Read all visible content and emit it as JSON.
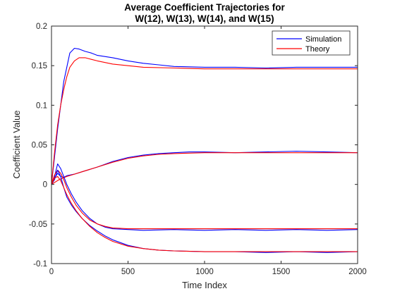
{
  "chart_data": {
    "type": "line",
    "title_lines": [
      "Average Coefficient Trajectories for",
      "W(12), W(13), W(14), and W(15)"
    ],
    "xlabel": "Time Index",
    "ylabel": "Coefficient Value",
    "xlim": [
      0,
      2000
    ],
    "ylim": [
      -0.1,
      0.2
    ],
    "xticks": [
      0,
      500,
      1000,
      1500,
      2000
    ],
    "xtick_labels": [
      "0",
      "500",
      "1000",
      "1500",
      "2000"
    ],
    "yticks": [
      -0.1,
      -0.05,
      0,
      0.05,
      0.1,
      0.15,
      0.2
    ],
    "ytick_labels": [
      "-0.1",
      "-0.05",
      "0",
      "0.05",
      "0.1",
      "0.15",
      "0.2"
    ],
    "grid": false,
    "legend_position": "top-right",
    "legend": [
      {
        "label": "Simulation",
        "color": "#0000ff"
      },
      {
        "label": "Theory",
        "color": "#ff0000"
      }
    ],
    "series": [
      {
        "legend": "Simulation",
        "color": "#0000ff",
        "x": [
          0,
          40,
          80,
          120,
          150,
          180,
          220,
          260,
          300,
          400,
          500,
          600,
          700,
          800,
          1000,
          1200,
          1400,
          1600,
          1800,
          2000
        ],
        "y": [
          0,
          0.07,
          0.13,
          0.166,
          0.172,
          0.171,
          0.168,
          0.166,
          0.163,
          0.16,
          0.156,
          0.153,
          0.151,
          0.149,
          0.148,
          0.148,
          0.147,
          0.148,
          0.148,
          0.148
        ]
      },
      {
        "legend": "Theory",
        "color": "#ff0000",
        "x": [
          0,
          20,
          40,
          60,
          80,
          100,
          120,
          150,
          180,
          220,
          260,
          300,
          400,
          500,
          600,
          800,
          1000,
          1200,
          1600,
          2000
        ],
        "y": [
          0,
          0.04,
          0.075,
          0.1,
          0.12,
          0.136,
          0.148,
          0.156,
          0.16,
          0.16,
          0.158,
          0.156,
          0.152,
          0.15,
          0.148,
          0.147,
          0.146,
          0.146,
          0.146,
          0.146
        ]
      },
      {
        "legend": "Simulation",
        "color": "#0000ff",
        "x": [
          0,
          20,
          40,
          60,
          80,
          100,
          150,
          200,
          300,
          400,
          500,
          600,
          700,
          800,
          900,
          1000,
          1200,
          1400,
          1600,
          1800,
          2000
        ],
        "y": [
          0,
          0.008,
          0.014,
          0.01,
          0.009,
          0.011,
          0.013,
          0.016,
          0.022,
          0.029,
          0.034,
          0.037,
          0.039,
          0.04,
          0.041,
          0.041,
          0.04,
          0.041,
          0.042,
          0.041,
          0.04
        ]
      },
      {
        "legend": "Theory",
        "color": "#ff0000",
        "x": [
          0,
          50,
          100,
          150,
          200,
          300,
          400,
          500,
          600,
          700,
          800,
          1000,
          1200,
          1400,
          1600,
          1800,
          2000
        ],
        "y": [
          0,
          0.006,
          0.01,
          0.013,
          0.016,
          0.022,
          0.028,
          0.033,
          0.036,
          0.038,
          0.039,
          0.04,
          0.04,
          0.04,
          0.04,
          0.04,
          0.04
        ]
      },
      {
        "legend": "Simulation",
        "color": "#0000ff",
        "x": [
          0,
          20,
          40,
          60,
          80,
          100,
          130,
          160,
          200,
          250,
          300,
          350,
          400,
          500,
          600,
          800,
          1000,
          1200,
          1400,
          1600,
          1800,
          2000
        ],
        "y": [
          0,
          0.01,
          0.026,
          0.02,
          0.01,
          0.0,
          -0.012,
          -0.022,
          -0.033,
          -0.043,
          -0.05,
          -0.054,
          -0.056,
          -0.057,
          -0.058,
          -0.057,
          -0.058,
          -0.057,
          -0.058,
          -0.057,
          -0.058,
          -0.057
        ]
      },
      {
        "legend": "Theory",
        "color": "#ff0000",
        "x": [
          0,
          20,
          40,
          60,
          80,
          100,
          130,
          160,
          200,
          250,
          300,
          350,
          400,
          500,
          600,
          800,
          1000,
          1200,
          1600,
          2000
        ],
        "y": [
          0,
          0.012,
          0.018,
          0.014,
          0.006,
          -0.004,
          -0.016,
          -0.026,
          -0.036,
          -0.045,
          -0.05,
          -0.053,
          -0.055,
          -0.056,
          -0.056,
          -0.056,
          -0.056,
          -0.056,
          -0.056,
          -0.056
        ]
      },
      {
        "legend": "Simulation",
        "color": "#0000ff",
        "x": [
          0,
          20,
          40,
          60,
          80,
          100,
          130,
          160,
          200,
          250,
          300,
          350,
          400,
          500,
          600,
          700,
          800,
          1000,
          1200,
          1400,
          1600,
          1800,
          2000
        ],
        "y": [
          0,
          0.006,
          0.018,
          0.01,
          -0.004,
          -0.016,
          -0.026,
          -0.034,
          -0.043,
          -0.052,
          -0.059,
          -0.065,
          -0.07,
          -0.077,
          -0.081,
          -0.083,
          -0.084,
          -0.085,
          -0.085,
          -0.086,
          -0.085,
          -0.086,
          -0.085
        ]
      },
      {
        "legend": "Theory",
        "color": "#ff0000",
        "x": [
          0,
          20,
          40,
          60,
          80,
          100,
          130,
          160,
          200,
          250,
          300,
          350,
          400,
          500,
          600,
          700,
          800,
          1000,
          1200,
          1600,
          2000
        ],
        "y": [
          0,
          0.008,
          0.01,
          0.005,
          -0.004,
          -0.013,
          -0.024,
          -0.033,
          -0.043,
          -0.053,
          -0.061,
          -0.067,
          -0.072,
          -0.078,
          -0.081,
          -0.083,
          -0.084,
          -0.085,
          -0.085,
          -0.085,
          -0.085
        ]
      }
    ]
  }
}
